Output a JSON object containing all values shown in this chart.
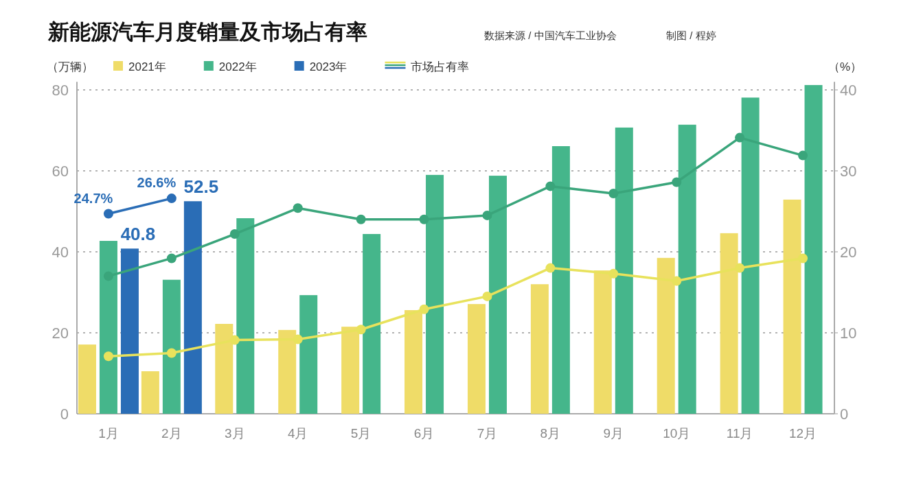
{
  "chart_data": {
    "type": "bar",
    "title": "新能源汽车月度销量及市场占有率",
    "annotations": [
      "数据来源 / 中国汽车工业协会",
      "制图 / 程婷"
    ],
    "ylabel": "（万辆）",
    "y2label": "（%）",
    "categories": [
      "1月",
      "2月",
      "3月",
      "4月",
      "5月",
      "6月",
      "7月",
      "8月",
      "9月",
      "10月",
      "11月",
      "12月"
    ],
    "series": [
      {
        "name": "2021年",
        "color": "#efdc68",
        "values": [
          17.1,
          10.5,
          22.2,
          20.7,
          21.5,
          25.6,
          27.1,
          32.0,
          35.4,
          38.5,
          44.6,
          52.9
        ]
      },
      {
        "name": "2022年",
        "color": "#45b68b",
        "values": [
          42.7,
          33.1,
          48.3,
          29.3,
          44.4,
          59.0,
          58.8,
          66.1,
          70.7,
          71.4,
          78.1,
          81.2
        ]
      },
      {
        "name": "2023年",
        "color": "#2a6db6",
        "values": [
          40.8,
          52.5,
          null,
          null,
          null,
          null,
          null,
          null,
          null,
          null,
          null,
          null
        ],
        "value_labels": [
          "40.8",
          "52.5",
          null,
          null,
          null,
          null,
          null,
          null,
          null,
          null,
          null,
          null
        ]
      },
      {
        "name": "市场占有率",
        "type": "line",
        "axis": "y2",
        "color": "#e8e25c",
        "values": [
          7.1,
          7.5,
          9.1,
          9.2,
          10.4,
          12.9,
          14.5,
          18.0,
          17.3,
          16.4,
          18.0,
          19.2
        ]
      },
      {
        "type": "line",
        "axis": "y2",
        "color": "#3aa57b",
        "values": [
          17.0,
          19.2,
          22.2,
          25.4,
          24.0,
          24.0,
          24.5,
          28.1,
          27.2,
          28.6,
          34.1,
          31.9
        ]
      },
      {
        "type": "line",
        "axis": "y2",
        "color": "#2a6db6",
        "values": [
          24.7,
          26.6,
          null,
          null,
          null,
          null,
          null,
          null,
          null,
          null,
          null,
          null
        ],
        "value_labels": [
          "24.7%",
          "26.6%",
          null,
          null,
          null,
          null,
          null,
          null,
          null,
          null,
          null,
          null
        ]
      }
    ],
    "ylim": [
      0,
      82
    ],
    "yticks": [
      0,
      20,
      40,
      60,
      80
    ],
    "y2lim": [
      0,
      41
    ],
    "y2ticks": [
      0,
      10,
      20,
      30,
      40
    ],
    "grid": "y",
    "legend": "top",
    "marker": "circle"
  }
}
